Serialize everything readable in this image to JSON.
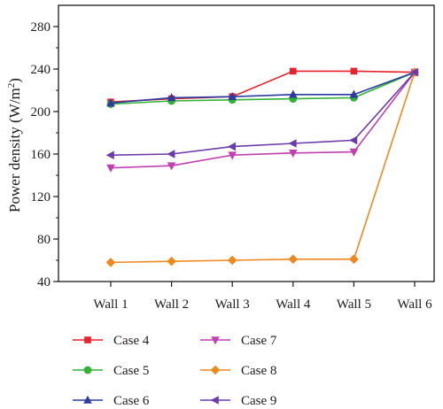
{
  "chart_data": {
    "type": "line",
    "categories": [
      "Wall 1",
      "Wall 2",
      "Wall 3",
      "Wall 4",
      "Wall 5",
      "Wall 6"
    ],
    "ylabel_main": "Power density (W/m",
    "ylabel_sup": "2",
    "ylabel_close": ")",
    "ylim": [
      40,
      300
    ],
    "yticks": [
      "40",
      "80",
      "120",
      "160",
      "200",
      "240",
      "280"
    ],
    "grid": false,
    "legend_position": "bottom",
    "series": [
      {
        "name": "Case 4",
        "color": "#e8222a",
        "marker": "square",
        "values": [
          209,
          212,
          214,
          238,
          238,
          237
        ]
      },
      {
        "name": "Case 5",
        "color": "#33b335",
        "marker": "circle",
        "values": [
          207,
          210,
          211,
          212,
          213,
          237
        ]
      },
      {
        "name": "Case 6",
        "color": "#2c3ca0",
        "marker": "triangle-up",
        "values": [
          208,
          213,
          214,
          216,
          216,
          237
        ]
      },
      {
        "name": "Case 7",
        "color": "#c040b0",
        "marker": "triangle-down",
        "values": [
          147,
          149,
          159,
          161,
          162,
          237
        ]
      },
      {
        "name": "Case 8",
        "color": "#f08820",
        "marker": "diamond",
        "values": [
          58,
          59,
          60,
          61,
          61,
          237
        ]
      },
      {
        "name": "Case 9",
        "color": "#6a3ca8",
        "marker": "triangle-left",
        "values": [
          159,
          160,
          167,
          170,
          173,
          237
        ]
      }
    ]
  }
}
